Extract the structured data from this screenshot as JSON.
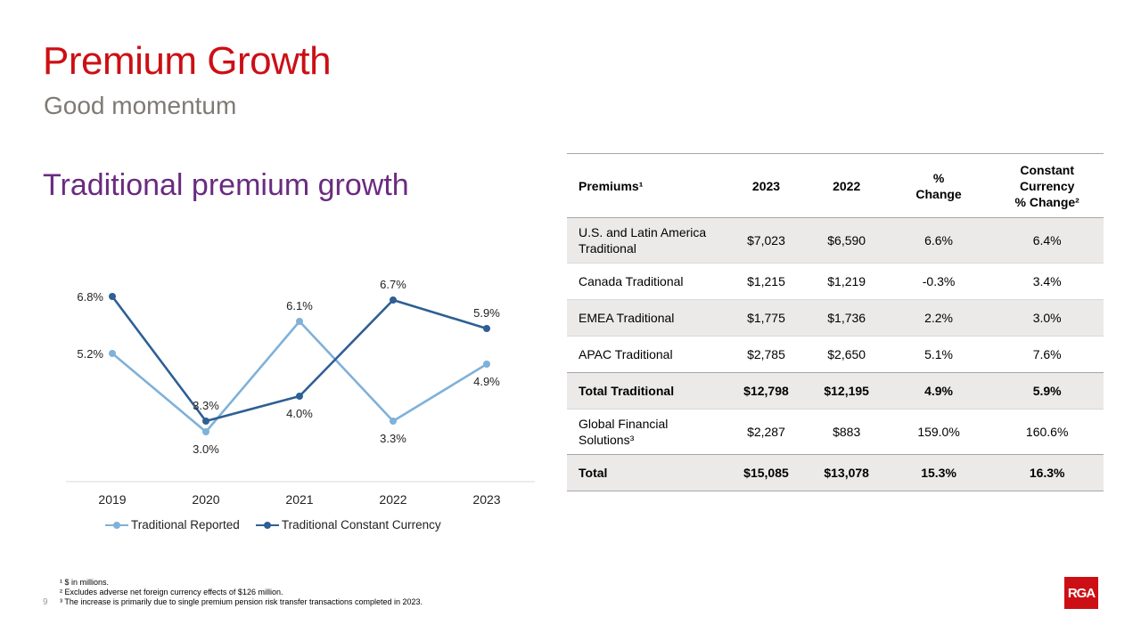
{
  "header": {
    "title": "Premium Growth",
    "subtitle": "Good momentum",
    "section_title": "Traditional premium growth"
  },
  "chart_data": {
    "type": "line",
    "title": "Traditional premium growth",
    "categories": [
      "2019",
      "2020",
      "2021",
      "2022",
      "2023"
    ],
    "series": [
      {
        "name": "Traditional Reported",
        "color": "#7fb1d9",
        "values": [
          5.2,
          3.0,
          6.1,
          3.3,
          4.9
        ],
        "labels": [
          "5.2%",
          "3.0%",
          "6.1%",
          "3.3%",
          "4.9%"
        ]
      },
      {
        "name": "Traditional Constant Currency",
        "color": "#2e5f95",
        "values": [
          6.8,
          3.3,
          4.0,
          6.7,
          5.9
        ],
        "labels": [
          "6.8%",
          "3.3%",
          "4.0%",
          "6.7%",
          "5.9%"
        ]
      }
    ],
    "ylim": [
      2.0,
      7.5
    ],
    "xlabel": "",
    "ylabel": "",
    "legend": "bottom",
    "grid": false
  },
  "table": {
    "headers": {
      "name": "Premiums¹",
      "y2023": "2023",
      "y2022": "2022",
      "pct_line1": "%",
      "pct_line2": "Change",
      "cc_line1": "Constant",
      "cc_line2": "Currency",
      "cc_line3": "% Change²"
    },
    "rows": [
      {
        "name_line1": "U.S. and Latin America",
        "name_line2": "Traditional",
        "y2023": "$7,023",
        "y2022": "$6,590",
        "pct": "6.6%",
        "cc": "6.4%"
      },
      {
        "name": "Canada Traditional",
        "y2023": "$1,215",
        "y2022": "$1,219",
        "pct": "-0.3%",
        "cc": "3.4%"
      },
      {
        "name": "EMEA Traditional",
        "y2023": "$1,775",
        "y2022": "$1,736",
        "pct": "2.2%",
        "cc": "3.0%"
      },
      {
        "name": "APAC Traditional",
        "y2023": "$2,785",
        "y2022": "$2,650",
        "pct": "5.1%",
        "cc": "7.6%"
      },
      {
        "name": "Total Traditional",
        "y2023": "$12,798",
        "y2022": "$12,195",
        "pct": "4.9%",
        "cc": "5.9%"
      },
      {
        "name_line1": "Global Financial",
        "name_line2": "Solutions³",
        "y2023": "$2,287",
        "y2022": "$883",
        "pct": "159.0%",
        "cc": "160.6%"
      },
      {
        "name": "Total",
        "y2023": "$15,085",
        "y2022": "$13,078",
        "pct": "15.3%",
        "cc": "16.3%"
      }
    ]
  },
  "footnotes": [
    "¹ $ in millions.",
    "² Excludes adverse net foreign currency effects of $126 million.",
    "³ The increase is primarily due to single premium pension risk transfer transactions completed in 2023."
  ],
  "page_number": "9",
  "logo_text": "RGA"
}
